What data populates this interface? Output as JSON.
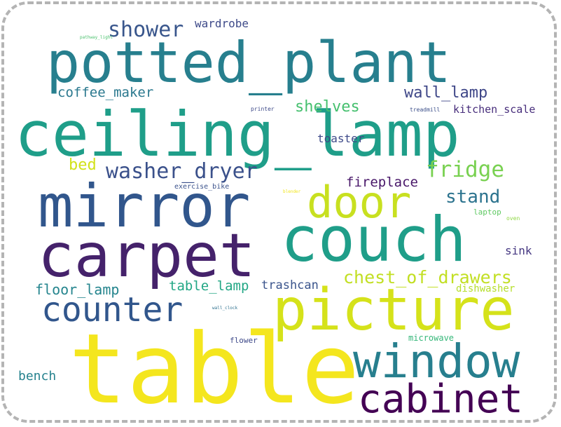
{
  "words": [
    {
      "text": "potted_plant",
      "color": "#277f8e"
    },
    {
      "text": "ceiling_lamp",
      "color": "#1f9e89"
    },
    {
      "text": "mirror",
      "color": "#31568c"
    },
    {
      "text": "carpet",
      "color": "#45226b"
    },
    {
      "text": "couch",
      "color": "#1f9e89"
    },
    {
      "text": "door",
      "color": "#c8e020"
    },
    {
      "text": "picture",
      "color": "#d5e21a"
    },
    {
      "text": "table",
      "color": "#f4e61e"
    },
    {
      "text": "window",
      "color": "#277f8e"
    },
    {
      "text": "cabinet",
      "color": "#440154"
    },
    {
      "text": "counter",
      "color": "#31568c"
    },
    {
      "text": "washer_dryer",
      "color": "#3b518b"
    },
    {
      "text": "fridge",
      "color": "#79d151"
    },
    {
      "text": "shower",
      "color": "#39568c"
    },
    {
      "text": "wardrobe",
      "color": "#3e4a89"
    },
    {
      "text": "coffee_maker",
      "color": "#2a788e"
    },
    {
      "text": "wall_lamp",
      "color": "#3f4788"
    },
    {
      "text": "shelves",
      "color": "#46c06f"
    },
    {
      "text": "kitchen_scale",
      "color": "#472d7b"
    },
    {
      "text": "toaster",
      "color": "#3e4a89"
    },
    {
      "text": "bed",
      "color": "#d2e21b"
    },
    {
      "text": "fireplace",
      "color": "#481769"
    },
    {
      "text": "stand",
      "color": "#2c738e"
    },
    {
      "text": "chest_of_drawers",
      "color": "#c2df23"
    },
    {
      "text": "floor_lamp",
      "color": "#25858e"
    },
    {
      "text": "table_lamp",
      "color": "#22a785"
    },
    {
      "text": "trashcan",
      "color": "#3a548c"
    },
    {
      "text": "dishwasher",
      "color": "#b5de2b"
    },
    {
      "text": "sink",
      "color": "#453781"
    },
    {
      "text": "bench",
      "color": "#26828e"
    },
    {
      "text": "microwave",
      "color": "#35b779"
    },
    {
      "text": "flower",
      "color": "#3e4989"
    },
    {
      "text": "exercise_bike",
      "color": "#3b528b"
    },
    {
      "text": "laptop",
      "color": "#5ec962"
    },
    {
      "text": "oven",
      "color": "#8fd744"
    },
    {
      "text": "wall_clock",
      "color": "#2d708e"
    },
    {
      "text": "printer",
      "color": "#3e4a89"
    },
    {
      "text": "treadmill",
      "color": "#3c4f8a"
    },
    {
      "text": "pathway_light",
      "color": "#4ac16d"
    },
    {
      "text": "blender",
      "color": "#f1e51d"
    }
  ]
}
